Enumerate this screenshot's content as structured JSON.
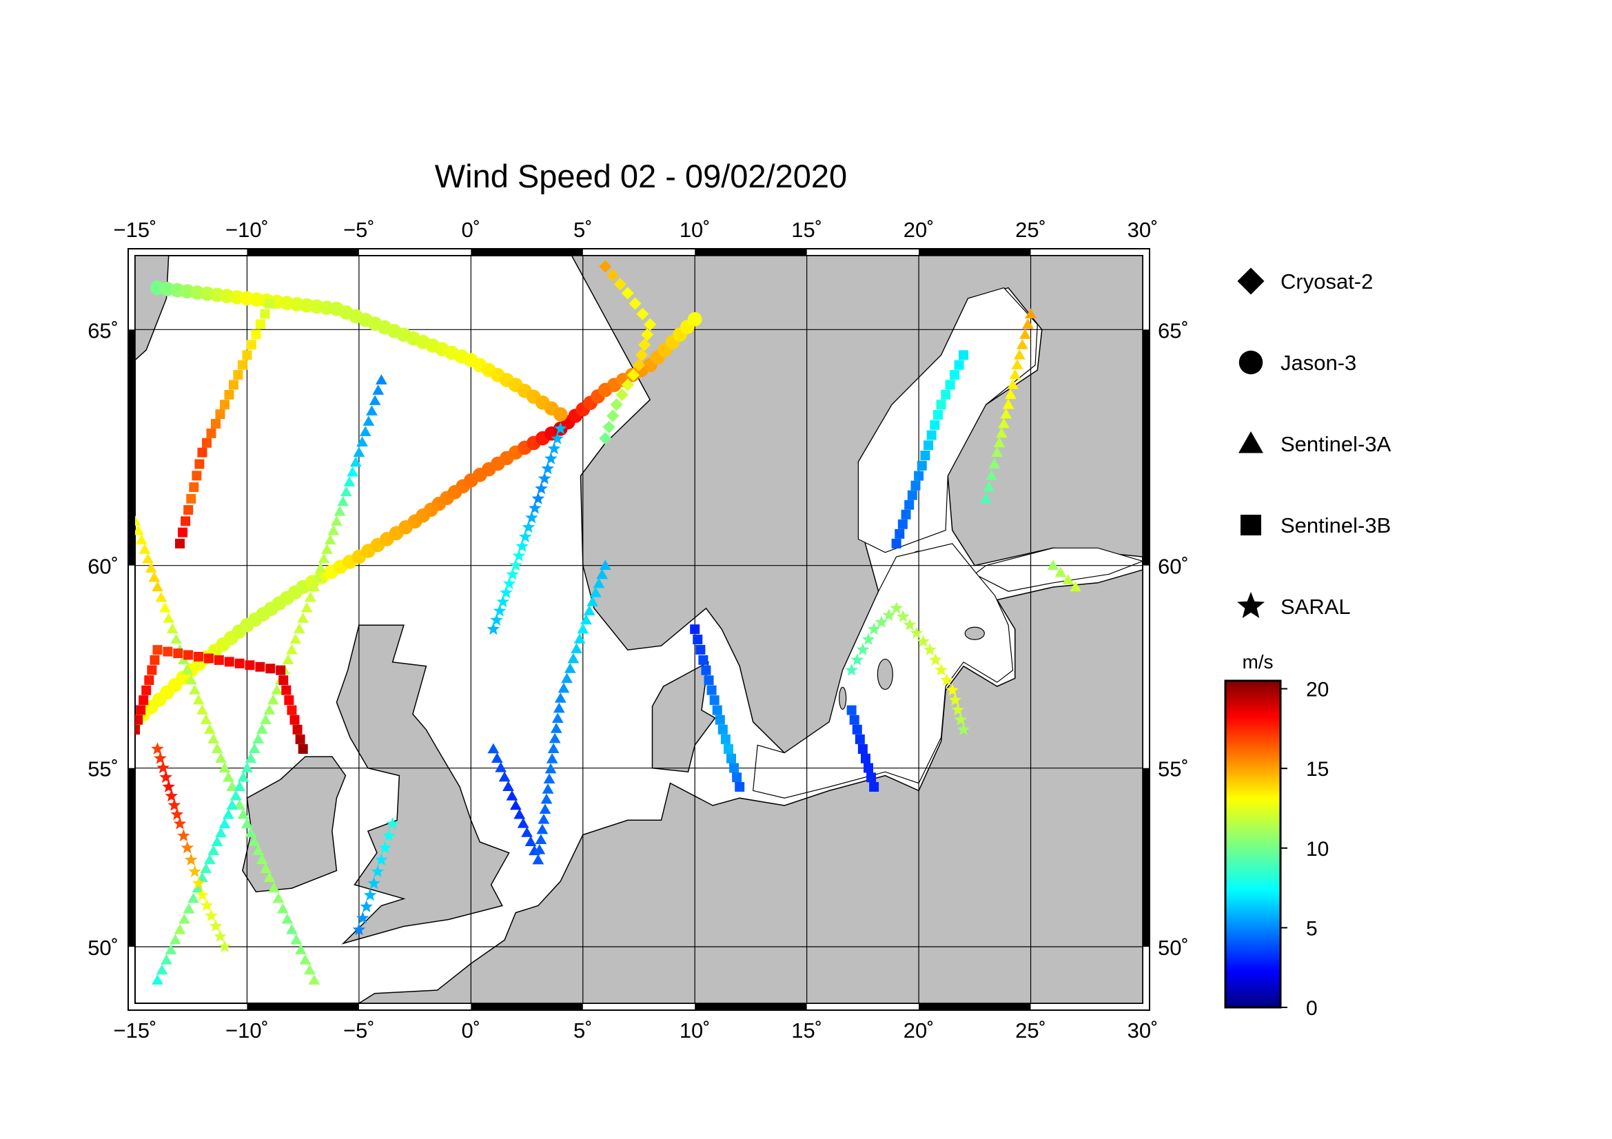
{
  "title": "Wind Speed 02 - 09/02/2020",
  "map": {
    "projection": "mercator",
    "lon_range": [
      -15,
      30
    ],
    "lat_range": [
      48.3,
      66.4
    ],
    "lon_ticks": [
      {
        "value": -15,
        "label": "-15˚"
      },
      {
        "value": -10,
        "label": "-10˚"
      },
      {
        "value": -5,
        "label": "-5˚"
      },
      {
        "value": 0,
        "label": "0˚"
      },
      {
        "value": 5,
        "label": "5˚"
      },
      {
        "value": 10,
        "label": "10˚"
      },
      {
        "value": 15,
        "label": "15˚"
      },
      {
        "value": 20,
        "label": "20˚"
      },
      {
        "value": 25,
        "label": "25˚"
      },
      {
        "value": 30,
        "label": "30˚"
      }
    ],
    "lat_ticks": [
      {
        "value": 50,
        "label": "50˚"
      },
      {
        "value": 55,
        "label": "55˚"
      },
      {
        "value": 60,
        "label": "60˚"
      },
      {
        "value": 65,
        "label": "65˚"
      }
    ],
    "land_color": "#bebebe",
    "sea_color": "#ffffff",
    "grid": true
  },
  "legend": [
    {
      "name": "Cryosat-2",
      "symbol": "diamond"
    },
    {
      "name": "Jason-3",
      "symbol": "circle"
    },
    {
      "name": "Sentinel-3A",
      "symbol": "triangle"
    },
    {
      "name": "Sentinel-3B",
      "symbol": "square"
    },
    {
      "name": "SARAL",
      "symbol": "star"
    }
  ],
  "colorbar": {
    "unit": "m/s",
    "min": 0,
    "max": 20.5,
    "ticks": [
      {
        "value": 0,
        "label": "0"
      },
      {
        "value": 5,
        "label": "5"
      },
      {
        "value": 10,
        "label": "10"
      },
      {
        "value": 15,
        "label": "15"
      },
      {
        "value": 20,
        "label": "20"
      }
    ],
    "colormap": "jet"
  },
  "chart_data": {
    "type": "scatter",
    "variable": "wind speed",
    "unit": "m/s",
    "tracks": [
      {
        "satellite": "Jason-3",
        "points": [
          [
            -15,
            56.2,
            13
          ],
          [
            -12.5,
            57.5,
            13
          ],
          [
            -10,
            58.6,
            12
          ],
          [
            -7.5,
            59.5,
            12
          ],
          [
            -5,
            60.2,
            14
          ],
          [
            -2.5,
            61.0,
            15
          ],
          [
            0,
            61.9,
            16
          ],
          [
            2,
            62.5,
            16
          ],
          [
            4,
            63.0,
            19
          ],
          [
            6,
            63.8,
            16
          ],
          [
            8,
            64.3,
            15
          ],
          [
            10,
            65.2,
            13
          ]
        ]
      },
      {
        "satellite": "Jason-3",
        "points": [
          [
            -14,
            65.8,
            10
          ],
          [
            -10,
            65.6,
            13
          ],
          [
            -6,
            65.4,
            12
          ],
          [
            -3,
            64.9,
            12
          ],
          [
            0,
            64.4,
            13
          ],
          [
            2,
            63.9,
            14
          ],
          [
            4,
            63.3,
            15
          ]
        ]
      },
      {
        "satellite": "Cryosat-2",
        "points": [
          [
            6,
            66.2,
            15
          ],
          [
            7,
            65.7,
            13
          ],
          [
            8,
            65.1,
            13
          ],
          [
            7.5,
            64.3,
            14
          ],
          [
            6.5,
            63.5,
            11
          ],
          [
            6,
            62.8,
            10
          ]
        ]
      },
      {
        "satellite": "Sentinel-3A",
        "points": [
          [
            -15,
            61.0,
            13
          ],
          [
            -14,
            59.5,
            14
          ],
          [
            -13,
            58.0,
            11
          ],
          [
            -12,
            56.5,
            12
          ],
          [
            -11,
            55.0,
            11
          ],
          [
            -10,
            53.5,
            10
          ],
          [
            -9,
            52.0,
            11
          ],
          [
            -8,
            50.5,
            10
          ],
          [
            -7,
            49.0,
            11
          ]
        ]
      },
      {
        "satellite": "Sentinel-3A",
        "points": [
          [
            -4,
            64.0,
            5
          ],
          [
            -5,
            62.5,
            6
          ],
          [
            -6,
            61.0,
            11
          ],
          [
            -7,
            59.5,
            12
          ],
          [
            -8,
            58.0,
            12
          ],
          [
            -9,
            56.5,
            11
          ],
          [
            -10,
            55.0,
            9
          ],
          [
            -11,
            53.5,
            8
          ],
          [
            -12,
            52.0,
            9
          ],
          [
            -13,
            50.5,
            11
          ],
          [
            -14,
            49.0,
            8
          ]
        ]
      },
      {
        "satellite": "Sentinel-3A",
        "points": [
          [
            1,
            55.5,
            4
          ],
          [
            2,
            54.0,
            3
          ],
          [
            3,
            52.5,
            4
          ],
          [
            4,
            56.8,
            5
          ],
          [
            5,
            58.5,
            7
          ],
          [
            6,
            60.0,
            6
          ]
        ]
      },
      {
        "satellite": "Sentinel-3B",
        "points": [
          [
            -13,
            60.5,
            19
          ],
          [
            -12.5,
            61.5,
            16
          ],
          [
            -12,
            62.5,
            17
          ],
          [
            -11,
            63.5,
            15
          ],
          [
            -10,
            64.5,
            14
          ],
          [
            -9,
            65.5,
            12
          ]
        ]
      },
      {
        "satellite": "Sentinel-3B",
        "points": [
          [
            -15,
            56.0,
            19
          ],
          [
            -14.5,
            57.0,
            18
          ],
          [
            -14,
            58.0,
            17
          ],
          [
            -8.5,
            57.5,
            19
          ],
          [
            -8,
            56.5,
            18
          ],
          [
            -7.5,
            55.5,
            20
          ]
        ]
      },
      {
        "satellite": "Sentinel-3B",
        "points": [
          [
            10,
            58.5,
            3
          ],
          [
            10.5,
            57.5,
            4
          ],
          [
            11,
            56.5,
            5
          ],
          [
            11.5,
            55.5,
            6
          ],
          [
            12,
            54.5,
            4
          ]
        ]
      },
      {
        "satellite": "Sentinel-3B",
        "points": [
          [
            17,
            56.5,
            4
          ],
          [
            17.5,
            55.5,
            3
          ],
          [
            18,
            54.5,
            3
          ],
          [
            19,
            60.5,
            4
          ],
          [
            20,
            62.0,
            5
          ],
          [
            21,
            63.5,
            8
          ],
          [
            22,
            64.5,
            7
          ]
        ]
      },
      {
        "satellite": "SARAL",
        "points": [
          [
            -14,
            55.5,
            17
          ],
          [
            -13.5,
            54.5,
            18
          ],
          [
            -13,
            53.5,
            17
          ],
          [
            -12.5,
            52.5,
            15
          ],
          [
            -12,
            51.5,
            13
          ],
          [
            -11,
            50.0,
            12
          ]
        ]
      },
      {
        "satellite": "SARAL",
        "points": [
          [
            -5,
            50.5,
            5
          ],
          [
            -4.5,
            51.5,
            6
          ],
          [
            -4,
            52.5,
            7
          ],
          [
            -3.5,
            53.5,
            8
          ],
          [
            1,
            58.5,
            6
          ],
          [
            2,
            60.0,
            8
          ],
          [
            3,
            61.5,
            5
          ],
          [
            4,
            63.0,
            6
          ]
        ]
      },
      {
        "satellite": "SARAL",
        "points": [
          [
            17,
            57.5,
            9
          ],
          [
            18,
            58.5,
            10
          ],
          [
            19,
            59.0,
            11
          ],
          [
            20.5,
            58.0,
            12
          ],
          [
            21.5,
            57.0,
            13
          ],
          [
            22,
            56.0,
            11
          ]
        ]
      },
      {
        "satellite": "Sentinel-3A",
        "points": [
          [
            23,
            61.5,
            9
          ],
          [
            23.5,
            62.5,
            11
          ],
          [
            24,
            63.5,
            13
          ],
          [
            24.5,
            64.5,
            14
          ],
          [
            25,
            65.3,
            15
          ],
          [
            26,
            60.0,
            11
          ],
          [
            27,
            59.5,
            12
          ]
        ]
      }
    ]
  }
}
